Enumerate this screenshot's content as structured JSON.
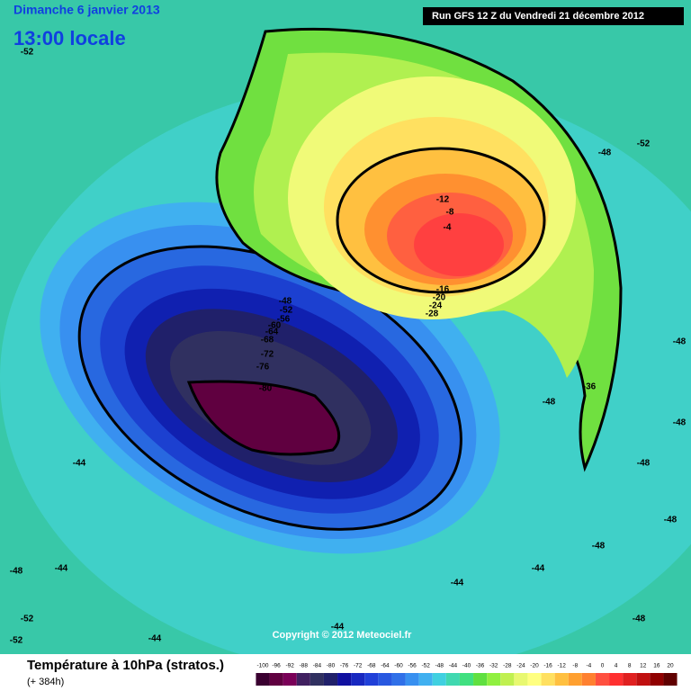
{
  "header": {
    "date": "Dimanche 6 janvier 2013",
    "time": "13:00 locale",
    "run": "Run GFS 12 Z du Vendredi 21 décembre 2012"
  },
  "copyright": "Copyright © 2012 Meteociel.fr",
  "footer": {
    "title": "Température à 10hPa (stratos.)",
    "lead": "(+ 384h)"
  },
  "legend": {
    "labels": [
      "-100",
      "-96",
      "-92",
      "-88",
      "-84",
      "-80",
      "-76",
      "-72",
      "-68",
      "-64",
      "-60",
      "-56",
      "-52",
      "-48",
      "-44",
      "-40",
      "-36",
      "-32",
      "-28",
      "-24",
      "-20",
      "-16",
      "-12",
      "-8",
      "-4",
      "0",
      "4",
      "8",
      "12",
      "16",
      "20"
    ],
    "colors": [
      "#3a0030",
      "#600040",
      "#7a0058",
      "#402060",
      "#303060",
      "#20206a",
      "#1010a0",
      "#1828c0",
      "#2040d8",
      "#2858e0",
      "#3070e8",
      "#3890f0",
      "#40b0f0",
      "#40d0e0",
      "#40d8b0",
      "#40e080",
      "#60e040",
      "#90f040",
      "#c0f050",
      "#e8f870",
      "#ffff80",
      "#ffe060",
      "#ffc040",
      "#ffa030",
      "#ff8030",
      "#ff5040",
      "#ff3030",
      "#e02020",
      "#c01010",
      "#900000",
      "#600000"
    ]
  },
  "contour_labels": [
    "-52",
    "-52",
    "-48",
    "-48",
    "-48",
    "-48",
    "-48",
    "-48",
    "-48",
    "-48",
    "-44",
    "-44",
    "-44",
    "-44",
    "-44",
    "-44",
    "-48",
    "-52",
    "-52",
    "-36",
    "-12",
    "-8",
    "-4",
    "-16",
    "-20",
    "-24",
    "-28",
    "-48",
    "-52",
    "-56",
    "-60",
    "-64",
    "-68",
    "-72",
    "-76",
    "-80"
  ]
}
